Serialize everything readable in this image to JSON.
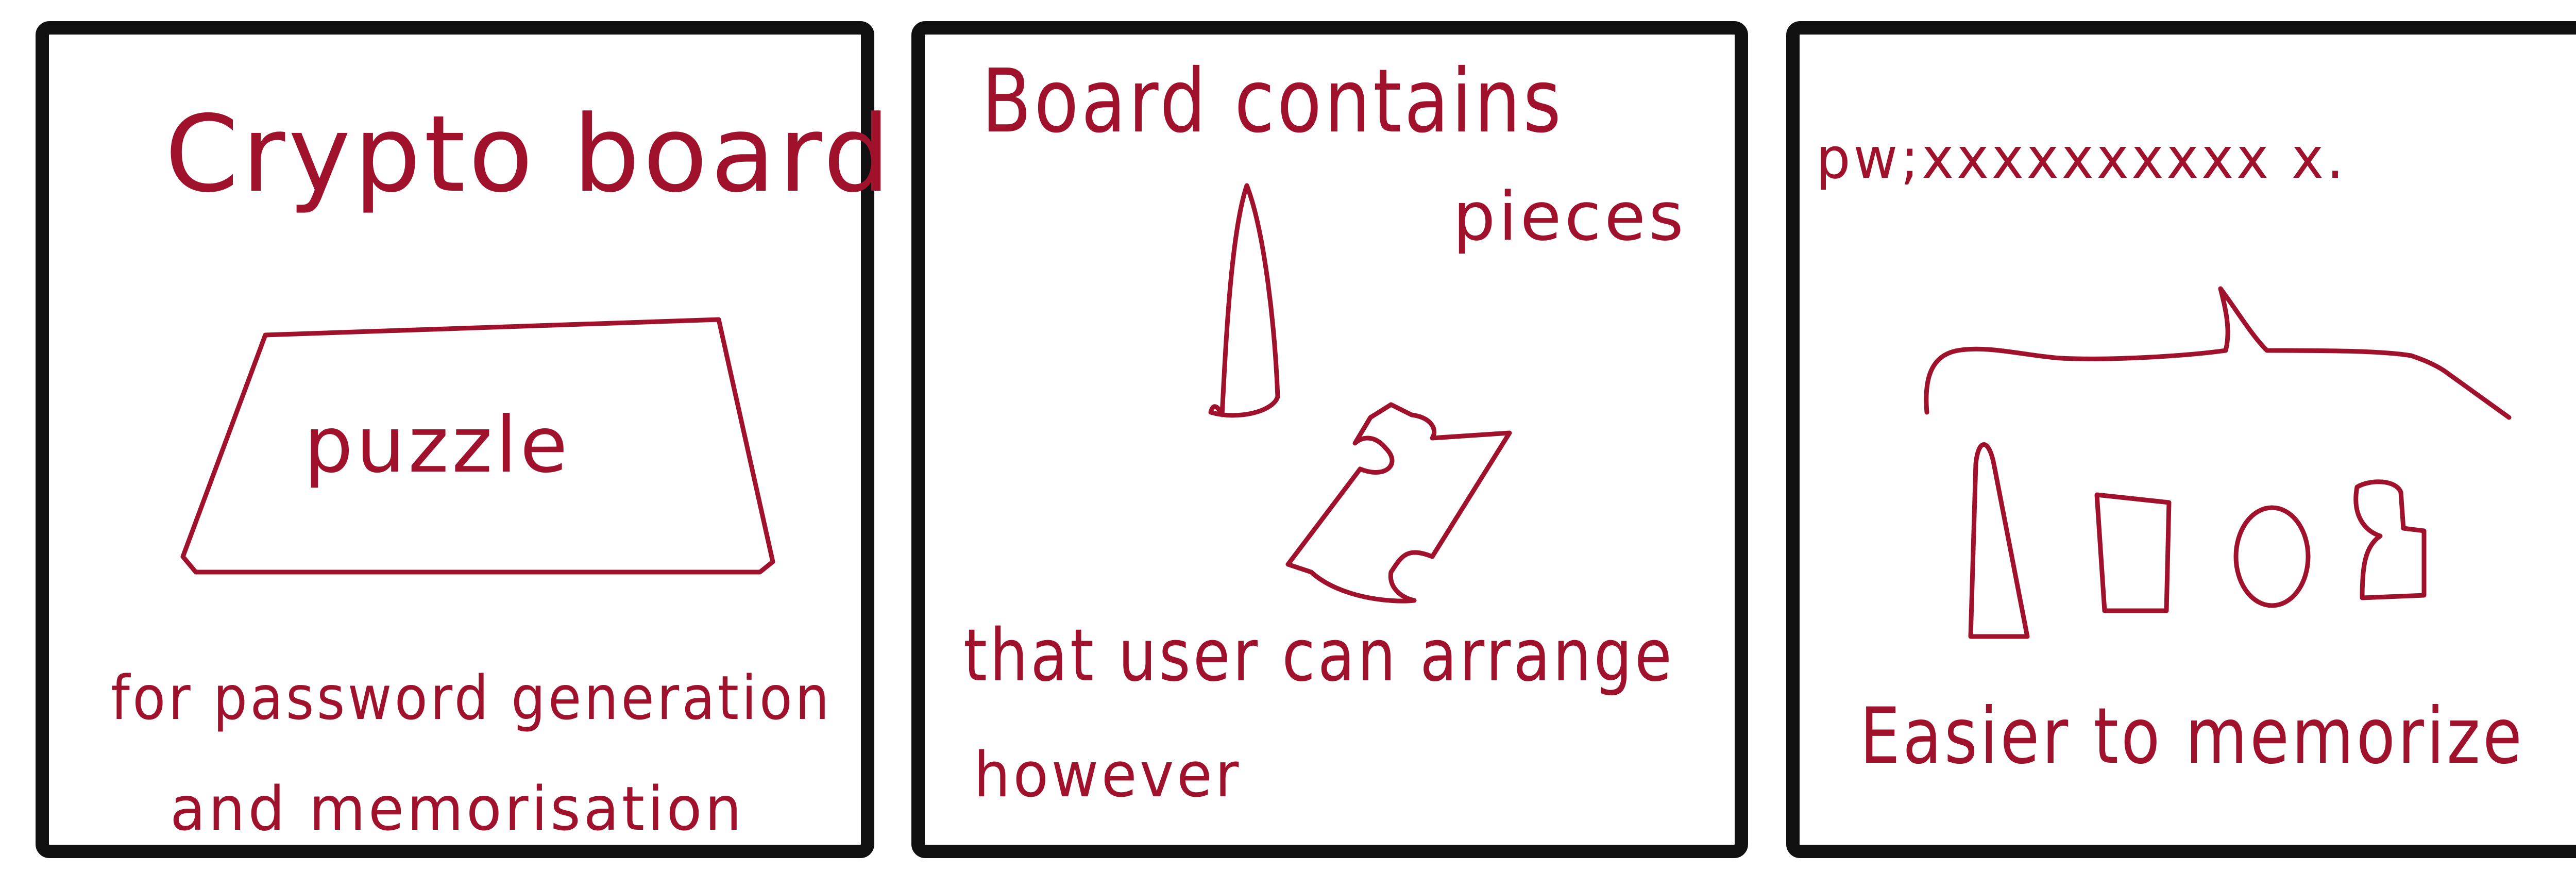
{
  "colors": {
    "ink": "#a0112b",
    "frame": "#111111",
    "background": "#ffffff"
  },
  "panels": [
    {
      "title": "Crypto board",
      "shape_label": "puzzle",
      "caption_line1": "for password generation",
      "caption_line2": "and memorisation"
    },
    {
      "title_line1": "Board contains",
      "title_line2": "pieces",
      "caption_line1": "that user can arrange",
      "caption_line2": "however"
    },
    {
      "header": "pw;xxxxxxxxxx x.",
      "caption": "Easier to memorize"
    }
  ]
}
